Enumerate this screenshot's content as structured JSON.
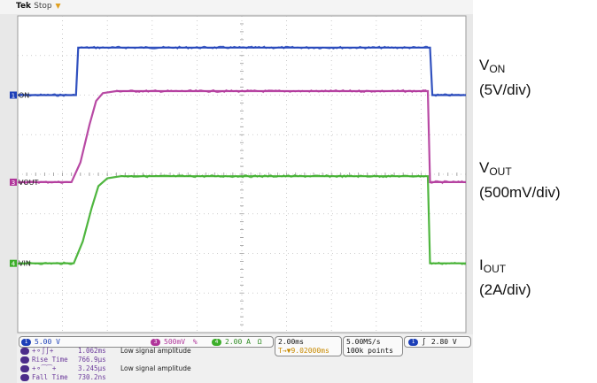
{
  "header": {
    "brand": "Tek",
    "state": "Stop"
  },
  "chart_data": {
    "type": "line",
    "title": "",
    "x": {
      "divisions": 10,
      "time_per_div": "2.00ms"
    },
    "y": {
      "divisions": 8
    },
    "grid": true,
    "series": [
      {
        "name": "ON",
        "marker_label": "ON",
        "channel": "1",
        "color": "#1c3fb8",
        "scale": "5.00 V",
        "points": [
          [
            0,
            2.0
          ],
          [
            1.3,
            2.0
          ],
          [
            1.35,
            3.2
          ],
          [
            9.2,
            3.2
          ],
          [
            9.25,
            2.0
          ],
          [
            10,
            2.0
          ]
        ]
      },
      {
        "name": "VOUT",
        "marker_label": "VOUT",
        "channel": "3",
        "color": "#b0359a",
        "scale": "500mV",
        "points": [
          [
            0,
            -0.2
          ],
          [
            1.2,
            -0.2
          ],
          [
            1.4,
            0.3
          ],
          [
            1.6,
            1.25
          ],
          [
            1.75,
            1.85
          ],
          [
            1.9,
            2.05
          ],
          [
            2.2,
            2.1
          ],
          [
            9.15,
            2.1
          ],
          [
            9.2,
            -0.2
          ],
          [
            10,
            -0.2
          ]
        ]
      },
      {
        "name": "VIN",
        "marker_label": "VIN",
        "channel": "4",
        "color": "#3cae2a",
        "scale": "2.00 A",
        "points": [
          [
            0,
            -2.25
          ],
          [
            1.25,
            -2.25
          ],
          [
            1.45,
            -1.7
          ],
          [
            1.65,
            -0.85
          ],
          [
            1.8,
            -0.3
          ],
          [
            2.0,
            -0.1
          ],
          [
            2.3,
            -0.05
          ],
          [
            9.15,
            -0.05
          ],
          [
            9.2,
            -2.25
          ],
          [
            10,
            -2.25
          ]
        ]
      }
    ],
    "annotations": [
      {
        "main": "V",
        "sub": "ON",
        "scale": "(5V/div)"
      },
      {
        "main": "V",
        "sub": "OUT",
        "scale": "(500mV/div)"
      },
      {
        "main": "I",
        "sub": "OUT",
        "scale": "(2A/div)"
      }
    ]
  },
  "status": {
    "ch1": "5.00 V",
    "ch3": "500mV",
    "ch3_bw": "%",
    "ch4": "2.00 A",
    "ch4_coupling": "Ω",
    "ch1_num": "1",
    "ch3_num": "3",
    "ch4_num": "4",
    "timebase": "2.00ms",
    "delay": "T→▼9.02000ms",
    "sample_rate": "5.00MS/s",
    "record": "100k points",
    "trigger_ch": "1",
    "trigger_slope": "∫",
    "trigger_level": "2.80 V",
    "measurements": [
      {
        "name": "+⚬∫∫+",
        "value": "1.062ms",
        "note": "Low signal amplitude"
      },
      {
        "name": "Rise Time",
        "value": "766.9µs",
        "note": ""
      },
      {
        "name": "+⚬⁀⁀+",
        "value": "3.245µs",
        "note": "Low signal amplitude"
      },
      {
        "name": "Fall Time",
        "value": "730.2ns",
        "note": ""
      }
    ]
  }
}
